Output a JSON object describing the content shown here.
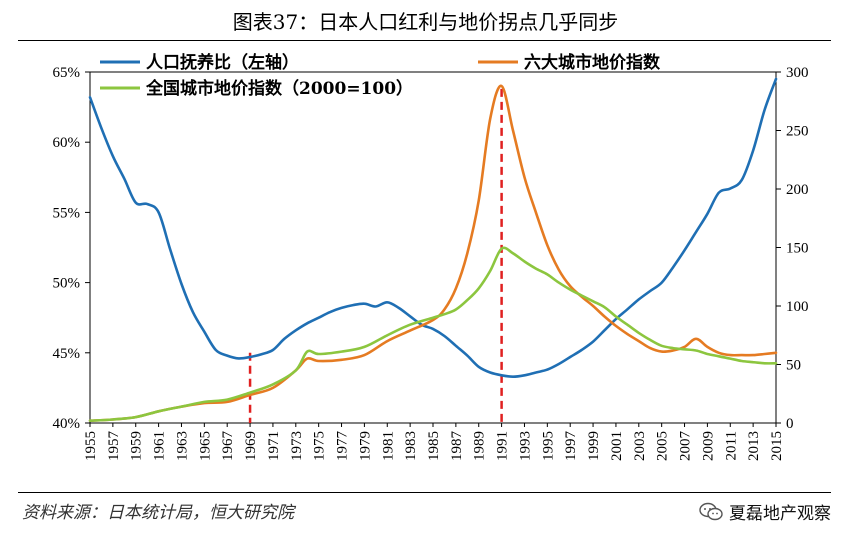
{
  "header": {
    "title": "图表37：日本人口红利与地价拐点几乎同步"
  },
  "footer": {
    "source": "资料来源：日本统计局，恒大研究院",
    "brand": "夏磊地产观察"
  },
  "chart_data": {
    "type": "line",
    "title": "图表37：日本人口红利与地价拐点几乎同步",
    "x": [
      1955,
      1957,
      1959,
      1961,
      1963,
      1965,
      1967,
      1969,
      1971,
      1973,
      1975,
      1977,
      1979,
      1981,
      1983,
      1985,
      1987,
      1989,
      1991,
      1993,
      1995,
      1997,
      1999,
      2001,
      2003,
      2005,
      2007,
      2009,
      2011,
      2013,
      2015
    ],
    "x_tick_labels": [
      "1955",
      "1957",
      "1959",
      "1961",
      "1963",
      "1965",
      "1967",
      "1969",
      "1971",
      "1973",
      "1975",
      "1977",
      "1979",
      "1981",
      "1983",
      "1985",
      "1987",
      "1989",
      "1991",
      "1993",
      "1995",
      "1997",
      "1999",
      "2001",
      "2003",
      "2005",
      "2007",
      "2009",
      "2011",
      "2013",
      "2015"
    ],
    "y_left": {
      "label": "",
      "ylim": [
        40,
        65
      ],
      "ticks": [
        "40%",
        "45%",
        "50%",
        "55%",
        "60%",
        "65%"
      ],
      "tick_values": [
        40,
        45,
        50,
        55,
        60,
        65
      ]
    },
    "y_right": {
      "label": "",
      "ylim": [
        0,
        300
      ],
      "ticks": [
        "0",
        "50",
        "100",
        "150",
        "200",
        "250",
        "300"
      ],
      "tick_values": [
        0,
        50,
        100,
        150,
        200,
        250,
        300
      ]
    },
    "series": [
      {
        "name": "人口抚养比（左轴）",
        "axis": "left",
        "color": "#1f6fb4",
        "x": [
          1955,
          1956,
          1957,
          1958,
          1959,
          1960,
          1961,
          1962,
          1963,
          1964,
          1965,
          1966,
          1967,
          1968,
          1969,
          1970,
          1971,
          1972,
          1973,
          1974,
          1975,
          1976,
          1977,
          1978,
          1979,
          1980,
          1981,
          1982,
          1983,
          1984,
          1985,
          1986,
          1987,
          1988,
          1989,
          1990,
          1991,
          1992,
          1993,
          1994,
          1995,
          1996,
          1997,
          1998,
          1999,
          2000,
          2001,
          2002,
          2003,
          2004,
          2005,
          2006,
          2007,
          2008,
          2009,
          2010,
          2011,
          2012,
          2013,
          2014,
          2015
        ],
        "values": [
          63.2,
          61.0,
          59.0,
          57.4,
          55.7,
          55.6,
          55.0,
          52.4,
          49.9,
          47.9,
          46.5,
          45.2,
          44.8,
          44.6,
          44.7,
          44.9,
          45.2,
          46.0,
          46.6,
          47.1,
          47.5,
          47.9,
          48.2,
          48.4,
          48.5,
          48.3,
          48.6,
          48.2,
          47.6,
          47.0,
          46.7,
          46.2,
          45.5,
          44.8,
          44.0,
          43.6,
          43.4,
          43.3,
          43.4,
          43.6,
          43.8,
          44.2,
          44.7,
          45.2,
          45.8,
          46.6,
          47.4,
          48.1,
          48.8,
          49.4,
          50.0,
          51.1,
          52.3,
          53.6,
          54.9,
          56.4,
          56.7,
          57.3,
          59.4,
          62.3,
          64.5
        ]
      },
      {
        "name": "六大城市地价指数",
        "axis": "right",
        "color": "#e57b22",
        "x": [
          1955,
          1957,
          1959,
          1961,
          1963,
          1965,
          1967,
          1969,
          1971,
          1973,
          1974,
          1975,
          1977,
          1979,
          1981,
          1983,
          1985,
          1986,
          1987,
          1988,
          1989,
          1990,
          1991,
          1992,
          1993,
          1994,
          1995,
          1996,
          1997,
          1998,
          1999,
          2000,
          2001,
          2002,
          2003,
          2004,
          2005,
          2006,
          2007,
          2008,
          2009,
          2010,
          2011,
          2012,
          2013,
          2014,
          2015
        ],
        "values": [
          2,
          3,
          5,
          10,
          14,
          17,
          18,
          24,
          30,
          45,
          55,
          53,
          54,
          58,
          70,
          79,
          88,
          97,
          115,
          145,
          190,
          260,
          288,
          250,
          210,
          180,
          152,
          131,
          117,
          108,
          100,
          91,
          83,
          76,
          70,
          64,
          61,
          62,
          65,
          72,
          65,
          60,
          58,
          58,
          58,
          59,
          60
        ]
      },
      {
        "name": "全国城市地价指数（2000=100）",
        "axis": "right",
        "color": "#8cc63f",
        "x": [
          1955,
          1957,
          1959,
          1961,
          1963,
          1965,
          1967,
          1969,
          1971,
          1973,
          1974,
          1975,
          1977,
          1979,
          1981,
          1983,
          1985,
          1986,
          1987,
          1988,
          1989,
          1990,
          1991,
          1992,
          1993,
          1994,
          1995,
          1996,
          1997,
          1998,
          1999,
          2000,
          2001,
          2002,
          2003,
          2004,
          2005,
          2006,
          2007,
          2008,
          2009,
          2010,
          2011,
          2012,
          2013,
          2014,
          2015
        ],
        "values": [
          2,
          3,
          5,
          10,
          14,
          18,
          20,
          26,
          33,
          45,
          61,
          59,
          61,
          65,
          75,
          84,
          90,
          93,
          97,
          105,
          115,
          130,
          149,
          145,
          138,
          132,
          127,
          120,
          114,
          109,
          104,
          99,
          91,
          84,
          77,
          71,
          66,
          64,
          63,
          62,
          59,
          57,
          55,
          53,
          52,
          51,
          51
        ]
      }
    ],
    "annotations": [
      {
        "type": "vline",
        "x": 1969,
        "color": "#e02020",
        "style": "dashed",
        "y_from": 45,
        "y_to": 40
      },
      {
        "type": "vline",
        "x": 1991,
        "color": "#e02020",
        "style": "dashed",
        "y_from": 63.8,
        "y_to": 40
      }
    ],
    "legend": [
      {
        "label": "人口抚养比（左轴）",
        "color": "#1f6fb4"
      },
      {
        "label": "六大城市地价指数",
        "color": "#e57b22"
      },
      {
        "label": "全国城市地价指数（2000=100）",
        "color": "#8cc63f"
      }
    ],
    "legend_position": "top"
  }
}
